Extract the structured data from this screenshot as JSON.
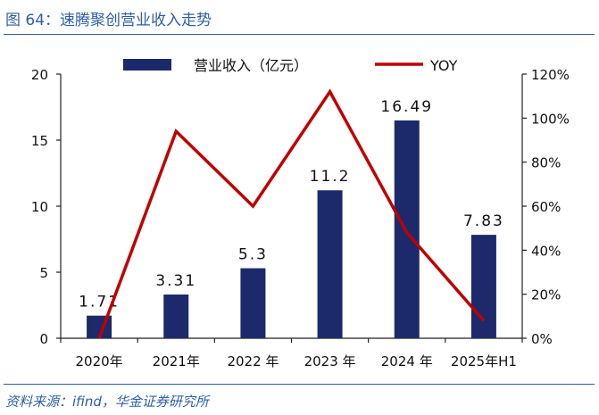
{
  "figure": {
    "title": "图 64：速腾聚创营业收入走势",
    "source": "资料来源：ifind，华金证券研究所"
  },
  "colors": {
    "bar": "#1c2a6b",
    "line": "#c00000",
    "header": "#2e5fa6",
    "axis": "#222222"
  },
  "chart_data": {
    "type": "bar",
    "categories": [
      "2020年",
      "2021年",
      "2022 年",
      "2023 年",
      "2024 年",
      "2025年H1"
    ],
    "series": [
      {
        "name": "营业收入（亿元）",
        "type": "bar",
        "axis": "left",
        "values": [
          1.71,
          3.31,
          5.3,
          11.2,
          16.49,
          7.83
        ],
        "labels": [
          "1.71",
          "3.31",
          "5.3",
          "11.2",
          "16.49",
          "7.83"
        ]
      },
      {
        "name": "YOY",
        "type": "line",
        "axis": "right",
        "values": [
          0,
          94,
          60,
          112,
          48,
          8
        ]
      }
    ],
    "y_left": {
      "min": 0,
      "max": 20,
      "ticks": [
        "0",
        "5",
        "10",
        "15",
        "20"
      ]
    },
    "y_right": {
      "min": 0,
      "max": 120,
      "ticks": [
        "0%",
        "20%",
        "40%",
        "60%",
        "80%",
        "100%",
        "120%"
      ]
    },
    "legend": {
      "position": "top",
      "items": [
        "营业收入（亿元）",
        "YOY"
      ]
    },
    "grid": false
  }
}
